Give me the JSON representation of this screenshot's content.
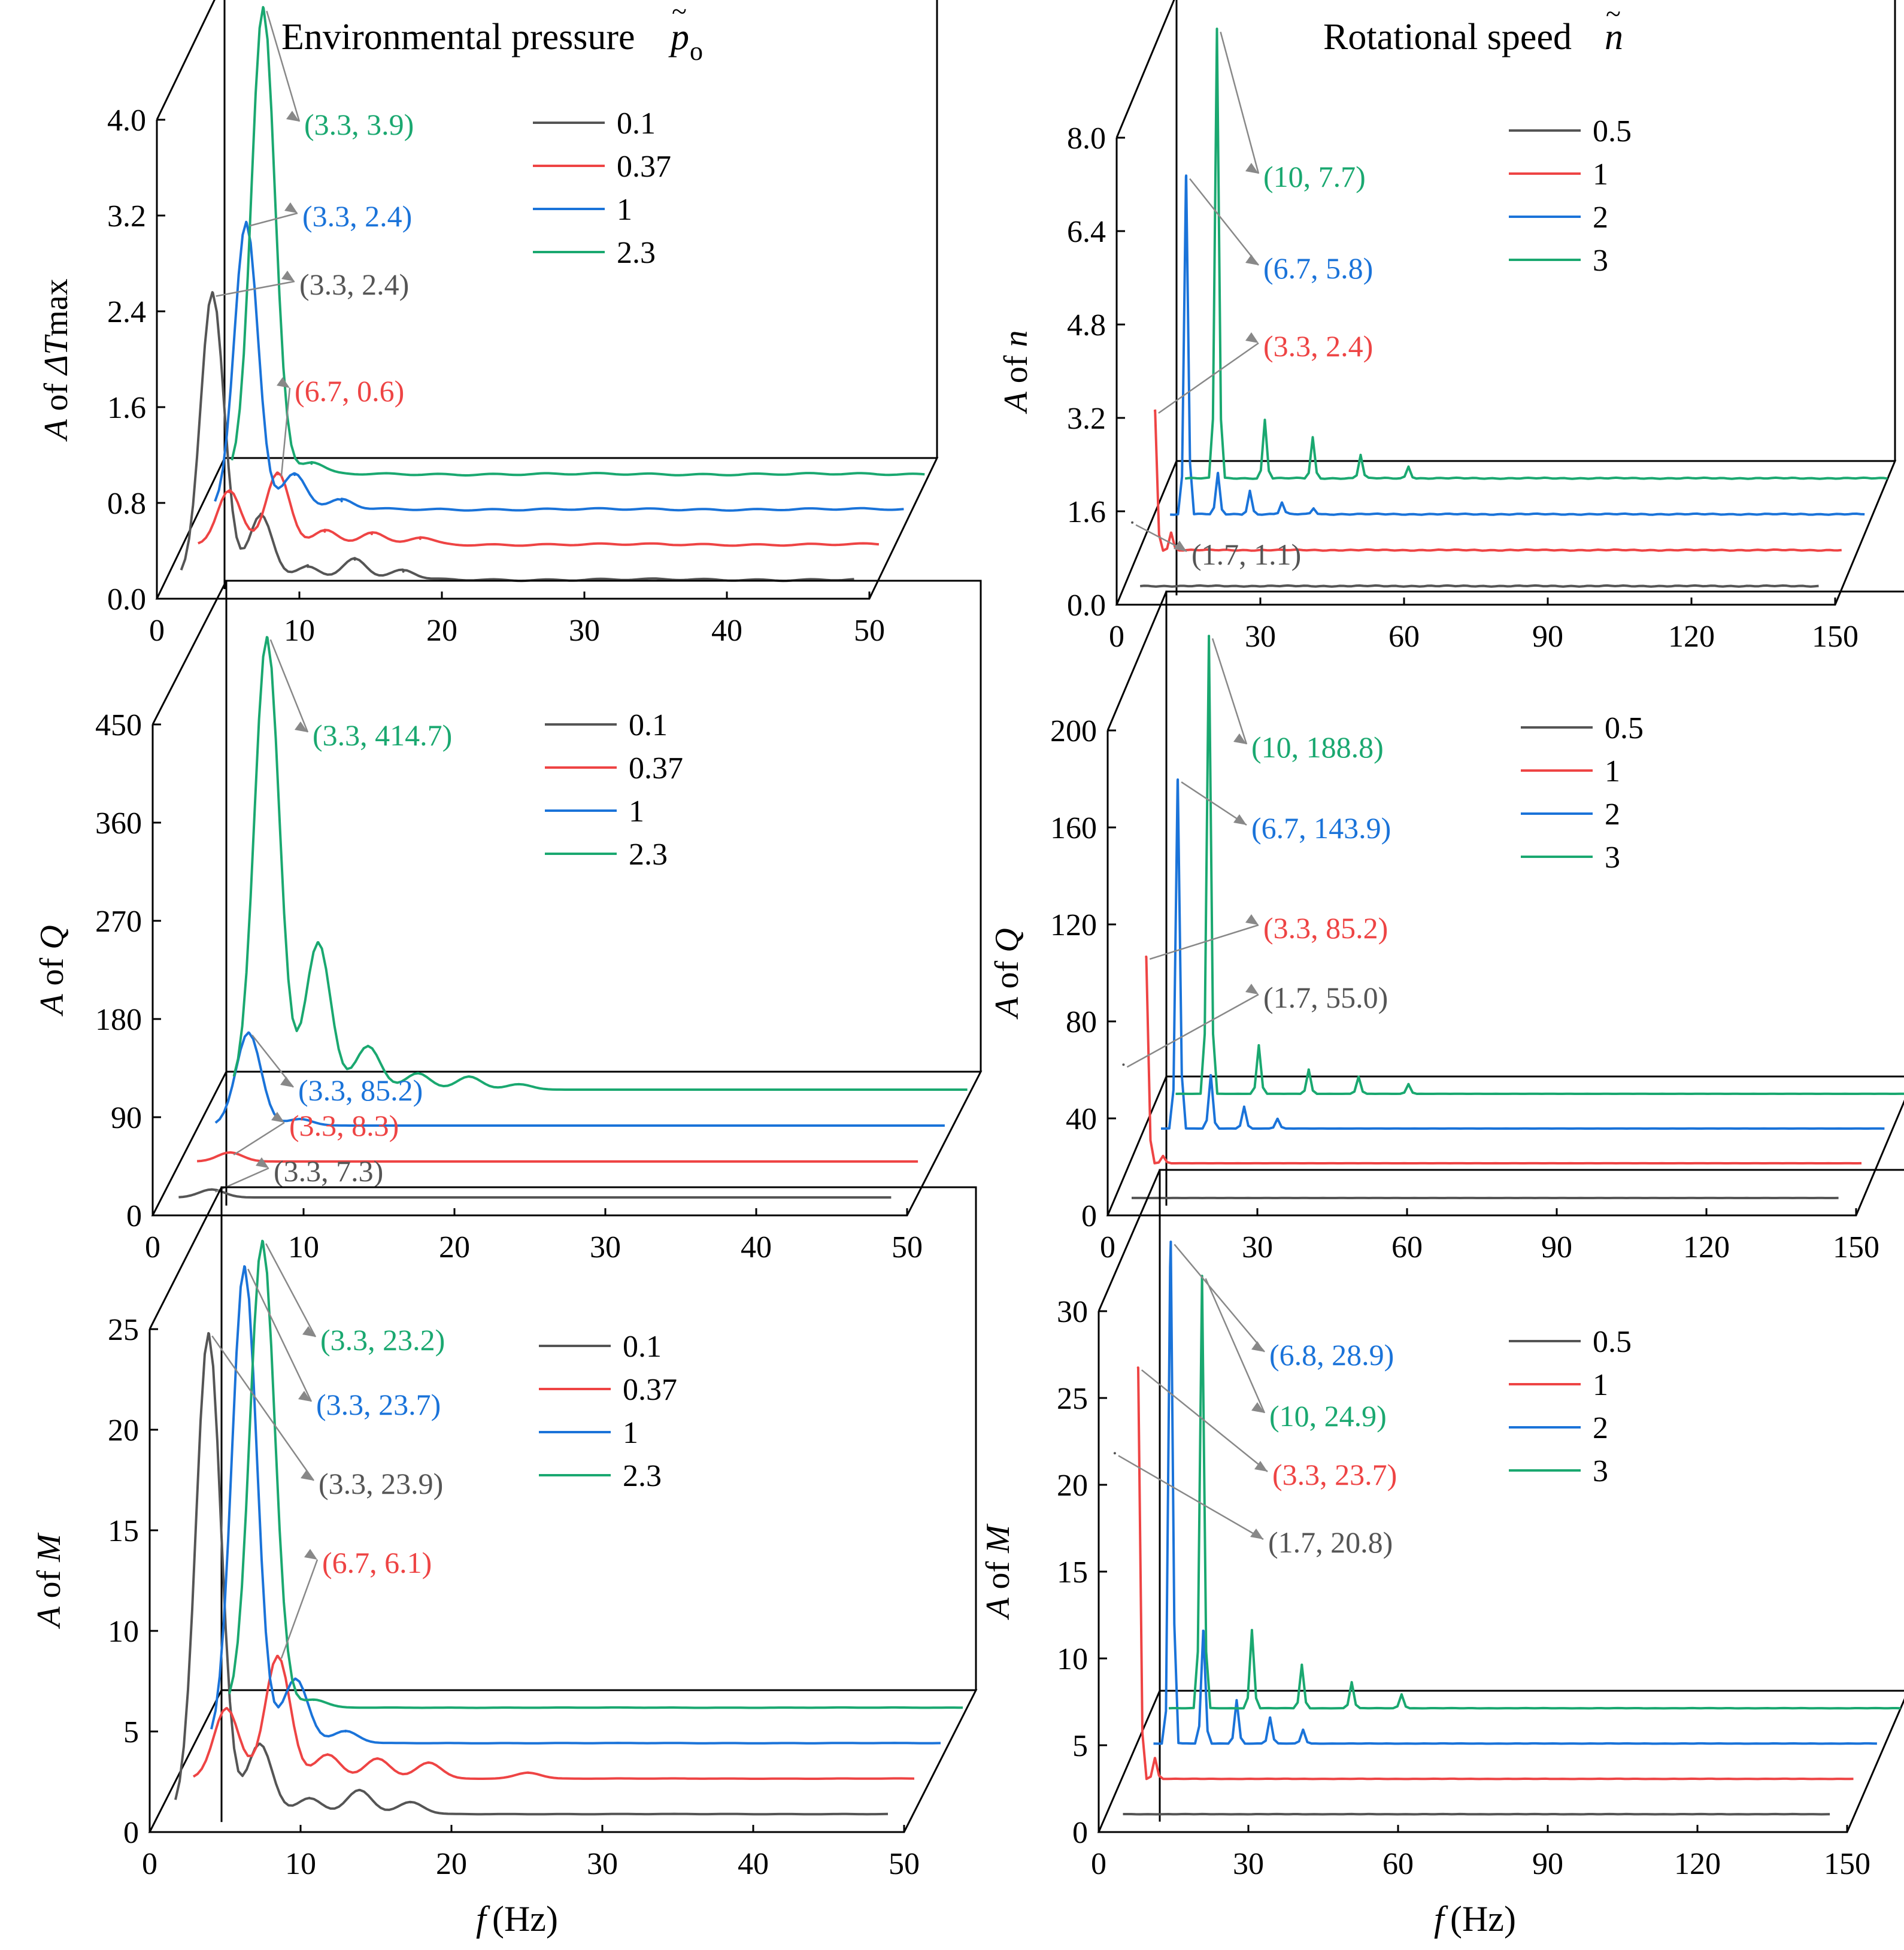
{
  "header": {
    "left": {
      "text": "Environmental pressure",
      "sym": "p",
      "sub": "o"
    },
    "right": {
      "text": "Rotational speed",
      "sym": "n"
    }
  },
  "xlabel": {
    "sym": "f",
    "unit": "(Hz)"
  },
  "colors": [
    "#555555",
    "#ee4444",
    "#1a73d9",
    "#1aa870"
  ],
  "chart_data": [
    {
      "type": "line",
      "ylabel": {
        "pre": "A of ",
        "sym": "ΔT",
        "post": "max"
      },
      "x_range": [
        0,
        50
      ],
      "y_range": [
        0,
        4.0
      ],
      "xticks": [
        "0",
        "10",
        "20",
        "30",
        "40",
        "50"
      ],
      "yticks": [
        "0.0",
        "0.8",
        "1.6",
        "2.4",
        "3.2",
        "4.0"
      ],
      "base_freq": 3.33,
      "series": [
        {
          "name": "0.1",
          "offset": 0,
          "peaks": [
            [
              3.3,
              2.4
            ],
            [
              6.7,
              0.55
            ],
            [
              10,
              0.12
            ],
            [
              13.3,
              0.18
            ],
            [
              16.7,
              0.08
            ]
          ]
        },
        {
          "name": "0.37",
          "offset": 1,
          "peaks": [
            [
              3.3,
              0.45
            ],
            [
              6.7,
              0.6
            ],
            [
              10,
              0.12
            ],
            [
              13.3,
              0.1
            ],
            [
              16.7,
              0.06
            ]
          ]
        },
        {
          "name": "1",
          "offset": 2,
          "peaks": [
            [
              3.3,
              2.4
            ],
            [
              6.7,
              0.3
            ],
            [
              10,
              0.08
            ]
          ]
        },
        {
          "name": "2.3",
          "offset": 3,
          "peaks": [
            [
              3.3,
              3.9
            ],
            [
              6.7,
              0.1
            ]
          ]
        }
      ],
      "annotations": [
        {
          "text": "(3.3, 3.9)",
          "series": 3,
          "x": 3.3,
          "y": 3.9
        },
        {
          "text": "(3.3, 2.4)",
          "series": 2,
          "x": 3.3,
          "y": 2.4
        },
        {
          "text": "(3.3, 2.4)",
          "series": 0,
          "x": 3.3,
          "y": 2.4
        },
        {
          "text": "(6.7, 0.6)",
          "series": 1,
          "x": 6.7,
          "y": 0.6
        }
      ]
    },
    {
      "type": "line",
      "ylabel": {
        "pre": "A of ",
        "sym": "n",
        "post": ""
      },
      "x_range": [
        0,
        150
      ],
      "y_range": [
        0,
        8.0
      ],
      "xticks": [
        "0",
        "30",
        "60",
        "90",
        "120",
        "150"
      ],
      "yticks": [
        "0.0",
        "1.6",
        "3.2",
        "4.8",
        "6.4",
        "8.0"
      ],
      "base_freq": 1.67,
      "series": [
        {
          "name": "0.5",
          "offset": 0,
          "peaks": [
            [
              1.7,
              1.1
            ]
          ]
        },
        {
          "name": "1",
          "offset": 1,
          "peaks": [
            [
              3.3,
              2.4
            ],
            [
              6.7,
              0.3
            ]
          ]
        },
        {
          "name": "2",
          "offset": 2,
          "peaks": [
            [
              6.7,
              5.8
            ],
            [
              13.3,
              0.7
            ],
            [
              20,
              0.4
            ],
            [
              26.7,
              0.2
            ],
            [
              33.3,
              0.1
            ]
          ]
        },
        {
          "name": "3",
          "offset": 3,
          "peaks": [
            [
              10,
              7.7
            ],
            [
              20,
              1.0
            ],
            [
              30,
              0.7
            ],
            [
              40,
              0.4
            ],
            [
              50,
              0.2
            ]
          ]
        }
      ],
      "annotations": [
        {
          "text": "(10, 7.7)",
          "series": 3,
          "x": 10,
          "y": 7.7
        },
        {
          "text": "(6.7, 5.8)",
          "series": 2,
          "x": 6.7,
          "y": 5.8
        },
        {
          "text": "(3.3, 2.4)",
          "series": 1,
          "x": 3.3,
          "y": 2.4
        },
        {
          "text": "(1.7, 1.1)",
          "series": 0,
          "x": 1.7,
          "y": 1.1
        }
      ]
    },
    {
      "type": "line",
      "ylabel": {
        "pre": "A of ",
        "sym": "Q",
        "post": ""
      },
      "x_range": [
        0,
        50
      ],
      "y_range": [
        0,
        450
      ],
      "xticks": [
        "0",
        "10",
        "20",
        "30",
        "40",
        "50"
      ],
      "yticks": [
        "0",
        "90",
        "180",
        "270",
        "360",
        "450"
      ],
      "base_freq": 3.33,
      "series": [
        {
          "name": "0.1",
          "offset": 0,
          "peaks": [
            [
              3.3,
              7.3
            ]
          ]
        },
        {
          "name": "0.37",
          "offset": 1,
          "peaks": [
            [
              3.3,
              8.3
            ]
          ]
        },
        {
          "name": "1",
          "offset": 2,
          "peaks": [
            [
              3.3,
              85.2
            ],
            [
              6.7,
              6
            ]
          ]
        },
        {
          "name": "2.3",
          "offset": 3,
          "peaks": [
            [
              3.3,
              414.7
            ],
            [
              6.7,
              135
            ],
            [
              10,
              40
            ],
            [
              13.3,
              15
            ],
            [
              16.7,
              12
            ],
            [
              20,
              5
            ]
          ]
        }
      ],
      "annotations": [
        {
          "text": "(3.3, 414.7)",
          "series": 3,
          "x": 3.3,
          "y": 414.7
        },
        {
          "text": "(3.3, 85.2)",
          "series": 2,
          "x": 3.3,
          "y": 85.2
        },
        {
          "text": "(3.3, 8.3)",
          "series": 1,
          "x": 3.3,
          "y": 8.3
        },
        {
          "text": "(3.3, 7.3)",
          "series": 0,
          "x": 3.3,
          "y": 7.3
        }
      ]
    },
    {
      "type": "line",
      "ylabel": {
        "pre": "A of ",
        "sym": "Q",
        "post": ""
      },
      "x_range": [
        0,
        150
      ],
      "y_range": [
        0,
        200
      ],
      "xticks": [
        "0",
        "30",
        "60",
        "90",
        "120",
        "150"
      ],
      "yticks": [
        "0",
        "40",
        "80",
        "120",
        "160",
        "200"
      ],
      "base_freq": 1.67,
      "series": [
        {
          "name": "0.5",
          "offset": 0,
          "peaks": [
            [
              1.7,
              55.0
            ]
          ]
        },
        {
          "name": "1",
          "offset": 1,
          "peaks": [
            [
              3.3,
              85.2
            ],
            [
              6.7,
              3
            ]
          ]
        },
        {
          "name": "2",
          "offset": 2,
          "peaks": [
            [
              6.7,
              143.9
            ],
            [
              13.3,
              22
            ],
            [
              20,
              9
            ],
            [
              26.7,
              4
            ]
          ]
        },
        {
          "name": "3",
          "offset": 3,
          "peaks": [
            [
              10,
              188.8
            ],
            [
              20,
              20
            ],
            [
              30,
              10
            ],
            [
              40,
              7
            ],
            [
              50,
              4
            ]
          ]
        }
      ],
      "annotations": [
        {
          "text": "(10, 188.8)",
          "series": 3,
          "x": 10,
          "y": 188.8
        },
        {
          "text": "(6.7, 143.9)",
          "series": 2,
          "x": 6.7,
          "y": 143.9
        },
        {
          "text": "(3.3, 85.2)",
          "series": 1,
          "x": 3.3,
          "y": 85.2
        },
        {
          "text": "(1.7, 55.0)",
          "series": 0,
          "x": 1.7,
          "y": 55.0
        }
      ]
    },
    {
      "type": "line",
      "ylabel": {
        "pre": "A of ",
        "sym": "M",
        "post": ""
      },
      "x_range": [
        0,
        50
      ],
      "y_range": [
        0,
        25
      ],
      "xticks": [
        "0",
        "10",
        "20",
        "30",
        "40",
        "50"
      ],
      "yticks": [
        "0",
        "5",
        "10",
        "15",
        "20",
        "25"
      ],
      "base_freq": 3.33,
      "series": [
        {
          "name": "0.1",
          "offset": 0,
          "peaks": [
            [
              3.3,
              23.9
            ],
            [
              6.7,
              3.5
            ],
            [
              10,
              0.8
            ],
            [
              13.3,
              1.2
            ],
            [
              16.7,
              0.6
            ]
          ]
        },
        {
          "name": "0.37",
          "offset": 1,
          "peaks": [
            [
              3.3,
              3.5
            ],
            [
              6.7,
              6.1
            ],
            [
              10,
              1.2
            ],
            [
              13.3,
              1.0
            ],
            [
              16.7,
              0.8
            ],
            [
              23.3,
              0.3
            ]
          ]
        },
        {
          "name": "1",
          "offset": 2,
          "peaks": [
            [
              3.3,
              23.7
            ],
            [
              6.7,
              3.2
            ],
            [
              10,
              0.6
            ]
          ]
        },
        {
          "name": "2.3",
          "offset": 3,
          "peaks": [
            [
              3.3,
              23.2
            ],
            [
              6.7,
              0.4
            ]
          ]
        }
      ],
      "annotations": [
        {
          "text": "(3.3, 23.2)",
          "series": 3,
          "x": 3.3,
          "y": 23.2
        },
        {
          "text": "(3.3, 23.7)",
          "series": 2,
          "x": 3.3,
          "y": 23.7
        },
        {
          "text": "(3.3, 23.9)",
          "series": 0,
          "x": 3.3,
          "y": 23.9
        },
        {
          "text": "(6.7, 6.1)",
          "series": 1,
          "x": 6.7,
          "y": 6.1
        }
      ]
    },
    {
      "type": "line",
      "ylabel": {
        "pre": "A of ",
        "sym": "M",
        "post": ""
      },
      "x_range": [
        0,
        150
      ],
      "y_range": [
        0,
        30
      ],
      "xticks": [
        "0",
        "30",
        "60",
        "90",
        "120",
        "150"
      ],
      "yticks": [
        "0",
        "5",
        "10",
        "15",
        "20",
        "25",
        "30"
      ],
      "base_freq": 1.67,
      "series": [
        {
          "name": "0.5",
          "offset": 0,
          "peaks": [
            [
              1.7,
              20.8
            ]
          ]
        },
        {
          "name": "1",
          "offset": 1,
          "peaks": [
            [
              3.3,
              23.7
            ],
            [
              6.7,
              1.2
            ]
          ]
        },
        {
          "name": "2",
          "offset": 2,
          "peaks": [
            [
              6.8,
              28.9
            ],
            [
              13.3,
              6.5
            ],
            [
              20,
              2.5
            ],
            [
              26.7,
              1.5
            ],
            [
              33.3,
              0.8
            ]
          ]
        },
        {
          "name": "3",
          "offset": 3,
          "peaks": [
            [
              10,
              24.9
            ],
            [
              20,
              4.5
            ],
            [
              30,
              2.5
            ],
            [
              40,
              1.5
            ],
            [
              50,
              0.8
            ]
          ]
        }
      ],
      "annotations": [
        {
          "text": "(6.8, 28.9)",
          "series": 2,
          "x": 6.8,
          "y": 28.9
        },
        {
          "text": "(10, 24.9)",
          "series": 3,
          "x": 10,
          "y": 24.9
        },
        {
          "text": "(3.3, 23.7)",
          "series": 1,
          "x": 3.3,
          "y": 23.7
        },
        {
          "text": "(1.7, 20.8)",
          "series": 0,
          "x": 1.7,
          "y": 20.8
        }
      ]
    }
  ]
}
